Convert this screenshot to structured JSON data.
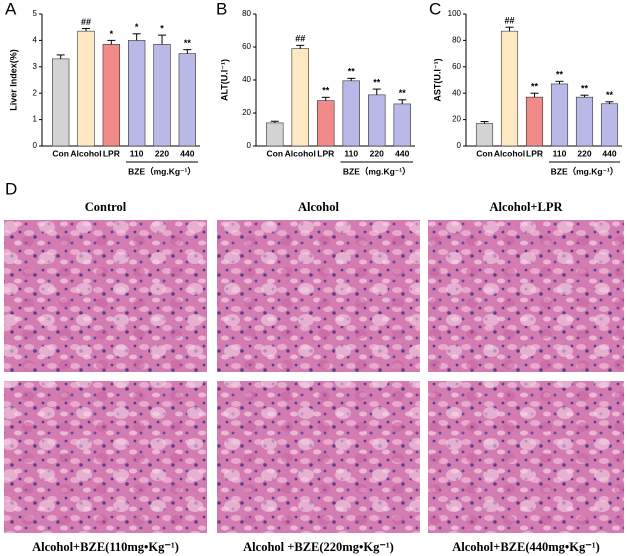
{
  "chart_data": [
    {
      "type": "bar",
      "panel": "A",
      "ylabel": "Liver Index(%)",
      "categories": [
        "Con",
        "Alcohol",
        "LPR",
        "110",
        "220",
        "440"
      ],
      "values": [
        3.3,
        4.35,
        3.85,
        4.0,
        3.85,
        3.5
      ],
      "error": [
        0.15,
        0.1,
        0.15,
        0.25,
        0.35,
        0.15
      ],
      "annotations": [
        null,
        "##",
        "*",
        "*",
        "*",
        "**"
      ],
      "colors": [
        "#d3d3d3",
        "#fde8c2",
        "#f28a8a",
        "#b9b8e6",
        "#b9b8e6",
        "#b9b8e6"
      ],
      "group_label": "BZE（mg.Kg⁻¹）",
      "ylim": [
        0,
        5
      ],
      "yticks": [
        0,
        1,
        2,
        3,
        4,
        5
      ]
    },
    {
      "type": "bar",
      "panel": "B",
      "ylabel": "ALT(U.l⁻¹)",
      "categories": [
        "Con",
        "Alcohol",
        "LPR",
        "110",
        "220",
        "440"
      ],
      "values": [
        14,
        59,
        27.5,
        39.5,
        31,
        25.5
      ],
      "error": [
        1,
        2,
        2,
        1.5,
        3.5,
        2.5
      ],
      "annotations": [
        null,
        "##",
        "**",
        "**",
        "**",
        "**"
      ],
      "colors": [
        "#d3d3d3",
        "#fde8c2",
        "#f28a8a",
        "#b9b8e6",
        "#b9b8e6",
        "#b9b8e6"
      ],
      "group_label": "BZE（mg.Kg⁻¹）",
      "ylim": [
        0,
        80
      ],
      "yticks": [
        0,
        20,
        40,
        60,
        80
      ]
    },
    {
      "type": "bar",
      "panel": "C",
      "ylabel": "AST(U.l⁻¹)",
      "categories": [
        "Con",
        "Alcohol",
        "LPR",
        "110",
        "220",
        "440"
      ],
      "values": [
        17,
        87,
        37,
        47,
        37,
        32
      ],
      "error": [
        1.5,
        3,
        3,
        2,
        1.5,
        1.5
      ],
      "annotations": [
        null,
        "##",
        "**",
        "**",
        "**",
        "**"
      ],
      "colors": [
        "#d3d3d3",
        "#fde8c2",
        "#f28a8a",
        "#b9b8e6",
        "#b9b8e6",
        "#b9b8e6"
      ],
      "group_label": "BZE（mg.Kg⁻¹）",
      "ylim": [
        0,
        100
      ],
      "yticks": [
        0,
        20,
        40,
        60,
        80,
        100
      ]
    }
  ],
  "panel_d": {
    "letter": "D",
    "images": [
      "Control",
      "Alcohol",
      "Alcohol+LPR",
      "Alcohol+BZE(110mg•Kg⁻¹)",
      "Alcohol +BZE(220mg•Kg⁻¹)",
      "Alcohol+BZE(440mg•Kg⁻¹)"
    ]
  }
}
